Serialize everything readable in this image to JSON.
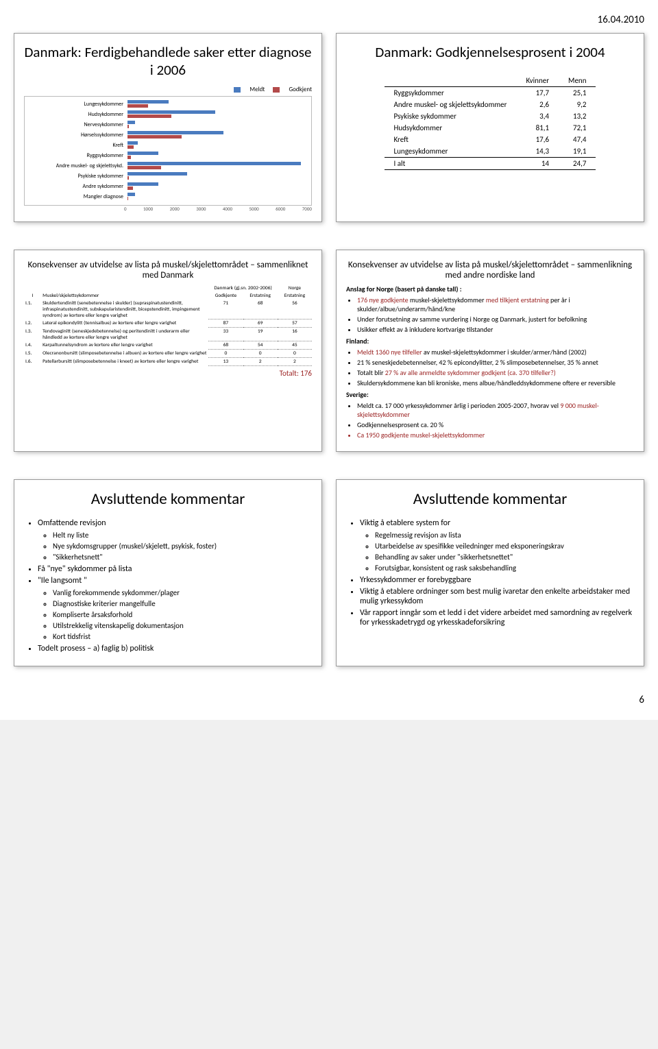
{
  "date": "16.04.2010",
  "page_number": "6",
  "row1": {
    "left": {
      "title": "Danmark: Ferdigbehandlede saker etter diagnose i 2006",
      "legend_meldt": "Meldt",
      "legend_godkjent": "Godkjent",
      "color_meldt": "#4a7bbf",
      "color_godkjent": "#b34a4a",
      "categories": [
        "Lungesykdommer",
        "Hudsykdommer",
        "Nervesykdommer",
        "Hørselssykdommer",
        "Kreft",
        "Ryggsykdommer",
        "Andre muskel- og skjelettsykd.",
        "Psykiske sykdommer",
        "Andre sykdommer",
        "Mangler diagnose"
      ],
      "meldt": [
        1600,
        3400,
        300,
        3700,
        400,
        1200,
        6700,
        2300,
        1200,
        300
      ],
      "godkjent": [
        800,
        1700,
        50,
        2100,
        250,
        120,
        1300,
        40,
        200,
        30
      ],
      "xmax": 7000,
      "xticks": [
        "0",
        "1000",
        "2000",
        "3000",
        "4000",
        "5000",
        "6000",
        "7000"
      ]
    },
    "right": {
      "title": "Danmark: Godkjennelsesprosent i 2004",
      "col1": "Kvinner",
      "col2": "Menn",
      "rows": [
        [
          "Ryggsykdommer",
          "17,7",
          "25,1"
        ],
        [
          "Andre muskel- og skjelettsykdommer",
          "2,6",
          "9,2"
        ],
        [
          "Psykiske sykdommer",
          "3,4",
          "13,2"
        ],
        [
          "Hudsykdommer",
          "81,1",
          "72,1"
        ],
        [
          "Kreft",
          "17,6",
          "47,4"
        ],
        [
          "Lungesykdommer",
          "14,3",
          "19,1"
        ],
        [
          "I alt",
          "14",
          "24,7"
        ]
      ]
    }
  },
  "row2": {
    "left": {
      "title": "Konsekvenser av utvidelse av lista på muskel/skjelettområdet – sammenliknet med Danmark",
      "col_group": "Danmark (gj.sn. 2002-2006)",
      "col_norge": "Norge",
      "h_idx": "I",
      "h_name": "Muskel/skjelettsykdommer",
      "h_c1": "Godkjente",
      "h_c2": "Erstatning",
      "h_c3": "Erstatning",
      "rows": [
        [
          "I.1.",
          "Skuldertendinitt (senebetennelse i skulder) (supraspinatustendinitt, infraspinatustendinitt, subskapularistendinitt, bicepstendinitt, impingement syndrom) av kortere eller lengre varighet",
          "71",
          "68",
          "56"
        ],
        [
          "I.2.",
          "Lateral epikondylitt (tennisalbue) av kortere eller lengre varighet",
          "87",
          "69",
          "57"
        ],
        [
          "I.3.",
          "Tendovaginitt (seneskjedebetennelse) og peritendinitt i underarm eller håndledd av kortere eller lengre varighet",
          "33",
          "19",
          "16"
        ],
        [
          "I.4.",
          "Karpaltunnelsyndrom av kortere eller lengre varighet",
          "68",
          "54",
          "45"
        ],
        [
          "I.5.",
          "Olecranonbursitt (slimposebetennelse i albuen) av kortere eller lengre varighet",
          "0",
          "0",
          "0"
        ],
        [
          "I.6.",
          "Patellarbursitt (slimposebetennelse i kneet) av kortere eller lengre varighet",
          "13",
          "2",
          "2"
        ]
      ],
      "totalt": "Totalt: 176"
    },
    "right": {
      "title": "Konsekvenser av utvidelse av lista på muskel/skjelettområdet – sammenlikning med andre nordiske land",
      "anslag_head": "Anslag for Norge (basert på danske tall) :",
      "line1a": "176 nye godkjente ",
      "line1b": "muskel-skjelettsykdommer ",
      "line1c": "med tilkjent erstatning ",
      "line1d": "per år i skulder/albue/underarm/hånd/kne",
      "line2": "Under forutsetning av samme vurdering i Norge og Danmark, justert for befolkning",
      "line3": "Usikker effekt av å inkludere kortvarige tilstander",
      "finland_head": "Finland:",
      "f1a": "Meldt 1360 nye tilfeller ",
      "f1b": "av muskel-skjelettsykdommer i skulder/armer/hånd (2002)",
      "f2": "21 % seneskjedebetennelser, 42 % epicondylitter, 2 % slimposebetennelser, 35 % annet",
      "f3a": "Totalt blir ",
      "f3b": "27 % av alle anmeldte sykdommer godkjent (ca. 370 tilfeller?)",
      "f4": "Skuldersykdommene kan bli kroniske, mens albue/håndleddsykdommene oftere er reversible",
      "sverige_head": "Sverige:",
      "s1a": "Meldt ca. 17 000 yrkessykdommer årlig i perioden 2005-2007, hvorav vel ",
      "s1b": "9 000 muskel-skjelettsykdommer",
      "s2": "Godkjennelsesprosent ca. 20 %",
      "s3": "Ca 1950 godkjente muskel-skjelettsykdommer"
    }
  },
  "row3": {
    "left": {
      "title": "Avsluttende kommentar",
      "b1": "Omfattende revisjon",
      "b1a": "Helt ny liste",
      "b1b": "Nye sykdomsgrupper (muskel/skjelett, psykisk, foster)",
      "b1c": "\"Sikkerhetsnett\"",
      "b2": "Få \"nye\" sykdommer på lista",
      "b3": "\"Ile langsomt \"",
      "b3a": "Vanlig forekommende sykdommer/plager",
      "b3b": "Diagnostiske kriterier mangelfulle",
      "b3c": "Kompliserte årsaksforhold",
      "b3d": "Utilstrekkelig vitenskapelig dokumentasjon",
      "b3e": "Kort tidsfrist",
      "b4": "Todelt prosess – a) faglig b) politisk"
    },
    "right": {
      "title": "Avsluttende kommentar",
      "b1": "Viktig å etablere system for",
      "b1a": "Regelmessig revisjon av lista",
      "b1b": "Utarbeidelse av spesifikke veiledninger med eksponeringskrav",
      "b1c": "Behandling av saker under \"sikkerhetsnettet\"",
      "b1d": "Forutsigbar, konsistent og rask saksbehandling",
      "b2": "Yrkessykdommer er forebyggbare",
      "b3": "Viktig å etablere ordninger som best mulig ivaretar den enkelte arbeidstaker med mulig yrkessykdom",
      "b4": "Vår rapport inngår som et ledd i det videre arbeidet med samordning av regelverk for yrkesskadetrygd og yrkesskadeforsikring"
    }
  }
}
